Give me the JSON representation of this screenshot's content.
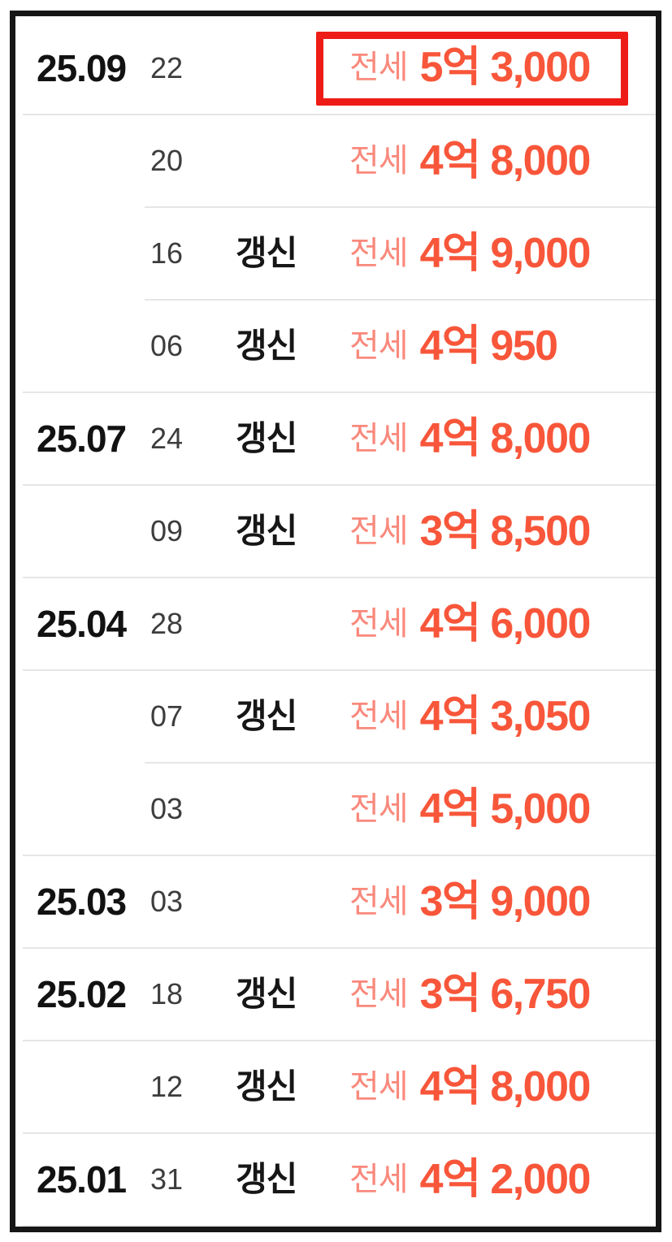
{
  "list": {
    "title": "jeonse-transaction-history",
    "colors": {
      "highlight_box": "#ed1c16",
      "price": "#f8563a",
      "lease_type": "#f9897c",
      "frame": "#161616"
    },
    "rows": [
      {
        "month": "25.09",
        "day": "22",
        "renewal": "",
        "lease_type": "전세",
        "price": "5억 3,000",
        "highlighted": true
      },
      {
        "month": "",
        "day": "20",
        "renewal": "",
        "lease_type": "전세",
        "price": "4억 8,000",
        "highlighted": false
      },
      {
        "month": "",
        "day": "16",
        "renewal": "갱신",
        "lease_type": "전세",
        "price": "4억 9,000",
        "highlighted": false
      },
      {
        "month": "",
        "day": "06",
        "renewal": "갱신",
        "lease_type": "전세",
        "price": "4억 950",
        "highlighted": false
      },
      {
        "month": "25.07",
        "day": "24",
        "renewal": "갱신",
        "lease_type": "전세",
        "price": "4억 8,000",
        "highlighted": false
      },
      {
        "month": "",
        "day": "09",
        "renewal": "갱신",
        "lease_type": "전세",
        "price": "3억 8,500",
        "highlighted": false
      },
      {
        "month": "25.04",
        "day": "28",
        "renewal": "",
        "lease_type": "전세",
        "price": "4억 6,000",
        "highlighted": false
      },
      {
        "month": "",
        "day": "07",
        "renewal": "갱신",
        "lease_type": "전세",
        "price": "4억 3,050",
        "highlighted": false
      },
      {
        "month": "",
        "day": "03",
        "renewal": "",
        "lease_type": "전세",
        "price": "4억 5,000",
        "highlighted": false
      },
      {
        "month": "25.03",
        "day": "03",
        "renewal": "",
        "lease_type": "전세",
        "price": "3억 9,000",
        "highlighted": false
      },
      {
        "month": "25.02",
        "day": "18",
        "renewal": "갱신",
        "lease_type": "전세",
        "price": "3억 6,750",
        "highlighted": false
      },
      {
        "month": "",
        "day": "12",
        "renewal": "갱신",
        "lease_type": "전세",
        "price": "4억 8,000",
        "highlighted": false
      },
      {
        "month": "25.01",
        "day": "31",
        "renewal": "갱신",
        "lease_type": "전세",
        "price": "4억 2,000",
        "highlighted": false
      }
    ]
  }
}
